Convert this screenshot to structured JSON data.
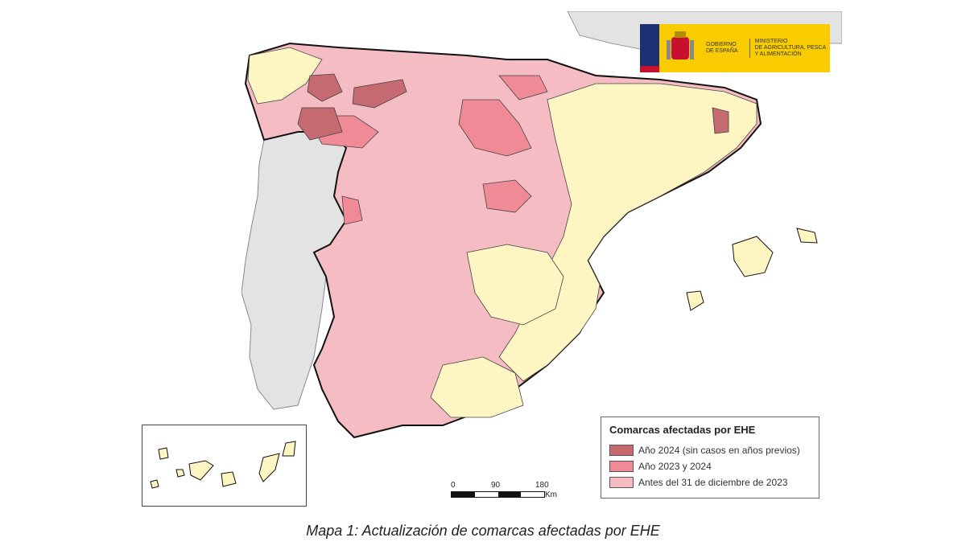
{
  "caption": "Mapa 1: Actualización de comarcas afectadas por EHE",
  "legend": {
    "title": "Comarcas afectadas por EHE",
    "items": [
      {
        "label": "Año 2024 (sin casos en años previos)",
        "color": "#c66a72"
      },
      {
        "label": "Año 2023 y 2024",
        "color": "#f08a96"
      },
      {
        "label": "Antes del 31 de diciembre de 2023",
        "color": "#f6bcc4"
      }
    ]
  },
  "logo": {
    "line1": "GOBIERNO",
    "line2": "DE ESPAÑA",
    "line3": "MINISTERIO",
    "line4": "DE AGRICULTURA, PESCA",
    "line5": "Y ALIMENTACIÓN"
  },
  "scale": {
    "t0": "0",
    "t1": "90",
    "t2": "180",
    "unit": "Km"
  },
  "colors": {
    "unaffected": "#fdf6c3",
    "background": "#e3e3e3",
    "border": "#111111"
  }
}
